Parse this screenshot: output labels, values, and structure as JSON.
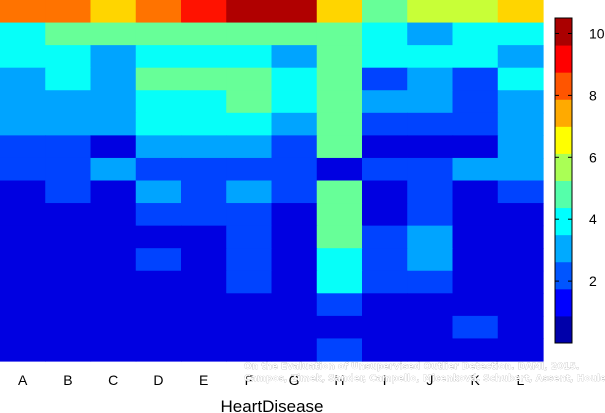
{
  "chart_data": {
    "type": "heatmap",
    "xlabel": "HeartDisease",
    "categories": [
      "A",
      "B",
      "C",
      "D",
      "E",
      "F",
      "G",
      "H",
      "I",
      "J",
      "K",
      "L"
    ],
    "colorbar": {
      "min": 0,
      "max": 10.5,
      "ticks": [
        2,
        4,
        6,
        8,
        10
      ]
    },
    "colormap": "jet",
    "annotation_lines": [
      "On the Evaluation of Unsupervised Outlier Detection. DAMI, 2015.",
      "Campos, Zimek, Sander, Campello, Micenková, Schubert, Assent, Houle"
    ],
    "rows": 16,
    "values": [
      [
        8,
        8,
        7,
        8,
        9,
        10,
        10,
        7,
        5,
        6,
        6,
        7
      ],
      [
        4,
        5,
        5,
        5,
        5,
        5,
        5,
        5,
        4,
        3,
        4,
        4
      ],
      [
        4,
        4,
        3,
        4,
        4,
        4,
        3,
        5,
        4,
        4,
        4,
        3
      ],
      [
        3,
        4,
        3,
        5,
        5,
        5,
        4,
        5,
        2,
        3,
        2,
        4
      ],
      [
        3,
        3,
        3,
        4,
        4,
        5,
        4,
        5,
        3,
        3,
        2,
        3
      ],
      [
        3,
        3,
        3,
        4,
        4,
        4,
        3,
        5,
        2,
        2,
        2,
        3
      ],
      [
        2,
        2,
        1,
        3,
        3,
        3,
        2,
        5,
        1,
        1,
        1,
        3
      ],
      [
        2,
        2,
        3,
        2,
        2,
        2,
        2,
        1,
        2,
        2,
        3,
        3
      ],
      [
        1,
        2,
        1,
        3,
        2,
        3,
        2,
        5,
        1,
        2,
        1,
        2
      ],
      [
        1,
        1,
        1,
        2,
        2,
        2,
        1,
        5,
        1,
        2,
        1,
        1
      ],
      [
        1,
        1,
        1,
        1,
        1,
        2,
        1,
        5,
        2,
        3,
        1,
        1
      ],
      [
        1,
        1,
        1,
        2,
        1,
        2,
        1,
        4,
        2,
        3,
        1,
        1
      ],
      [
        1,
        1,
        1,
        1,
        1,
        2,
        1,
        4,
        2,
        2,
        1,
        1
      ],
      [
        1,
        1,
        1,
        1,
        1,
        1,
        1,
        2,
        1,
        1,
        1,
        1
      ],
      [
        1,
        1,
        1,
        1,
        1,
        1,
        1,
        1,
        1,
        1,
        2,
        1
      ],
      [
        1,
        1,
        1,
        1,
        1,
        1,
        1,
        2,
        1,
        1,
        1,
        1
      ]
    ]
  }
}
